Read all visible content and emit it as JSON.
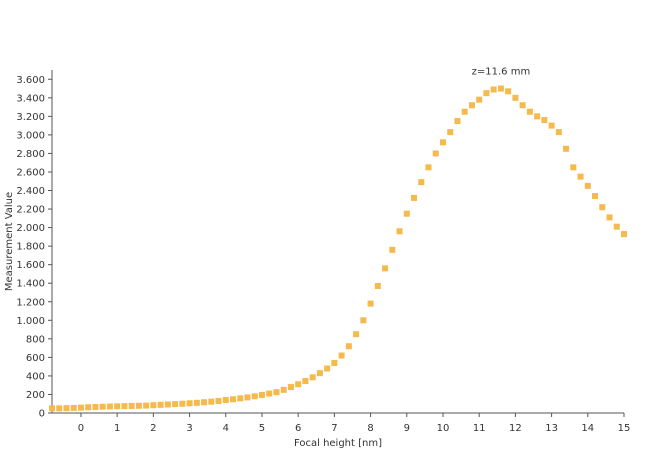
{
  "chart_data": {
    "type": "scatter",
    "xlabel": "Focal height [nm]",
    "ylabel": "Measurement Value",
    "xlim": [
      -0.8,
      15
    ],
    "ylim": [
      0,
      3700
    ],
    "x_ticks": [
      0,
      1,
      2,
      3,
      4,
      5,
      6,
      7,
      8,
      9,
      10,
      11,
      12,
      13,
      14,
      15
    ],
    "x_tick_labels": [
      "0",
      "1",
      "2",
      "3",
      "4",
      "5",
      "6",
      "7",
      "8",
      "9",
      "10",
      "11",
      "12",
      "13",
      "14",
      "15"
    ],
    "y_ticks": [
      0,
      200,
      400,
      600,
      800,
      1000,
      1200,
      1400,
      1600,
      1800,
      2000,
      2200,
      2400,
      2600,
      2800,
      3000,
      3200,
      3400,
      3600
    ],
    "y_tick_labels": [
      "0",
      "200",
      "400",
      "600",
      "800",
      "1.000",
      "1.200",
      "1.400",
      "1.600",
      "1.800",
      "2.000",
      "2.200",
      "2.400",
      "2.600",
      "2.800",
      "3.000",
      "3.200",
      "3.400",
      "3.600"
    ],
    "grid": false,
    "marker_color": "#f5b94c",
    "annotation": {
      "text": "z=11.6 mm",
      "x": 11.6,
      "y": 3500
    },
    "series": [
      {
        "x": [
          -0.8,
          -0.6,
          -0.4,
          -0.2,
          0,
          0.2,
          0.4,
          0.6,
          0.8,
          1,
          1.2,
          1.4,
          1.6,
          1.8,
          2,
          2.2,
          2.4,
          2.6,
          2.8,
          3,
          3.2,
          3.4,
          3.6,
          3.8,
          4,
          4.2,
          4.4,
          4.6,
          4.8,
          5,
          5.2,
          5.4,
          5.6,
          5.8,
          6,
          6.2,
          6.4,
          6.6,
          6.8,
          7,
          7.2,
          7.4,
          7.6,
          7.8,
          8,
          8.2,
          8.4,
          8.6,
          8.8,
          9,
          9.2,
          9.4,
          9.6,
          9.8,
          10,
          10.2,
          10.4,
          10.6,
          10.8,
          11,
          11.2,
          11.4,
          11.6,
          11.8,
          12,
          12.2,
          12.4,
          12.6,
          12.8,
          13,
          13.2,
          13.4,
          13.6,
          13.8,
          14,
          14.2,
          14.4,
          14.6,
          14.8,
          15
        ],
        "y": [
          50,
          50,
          52,
          55,
          58,
          62,
          65,
          68,
          70,
          72,
          74,
          76,
          78,
          80,
          84,
          88,
          92,
          96,
          100,
          105,
          110,
          116,
          122,
          130,
          140,
          148,
          158,
          168,
          180,
          195,
          210,
          225,
          250,
          280,
          310,
          345,
          385,
          430,
          480,
          540,
          620,
          720,
          850,
          1000,
          1180,
          1370,
          1560,
          1760,
          1960,
          2150,
          2320,
          2490,
          2650,
          2800,
          2920,
          3030,
          3150,
          3250,
          3320,
          3380,
          3450,
          3490,
          3500,
          3470,
          3400,
          3320,
          3250,
          3200,
          3160,
          3100,
          3030,
          2850,
          2650,
          2550,
          2450,
          2340,
          2220,
          2110,
          2010,
          1930
        ]
      }
    ]
  }
}
